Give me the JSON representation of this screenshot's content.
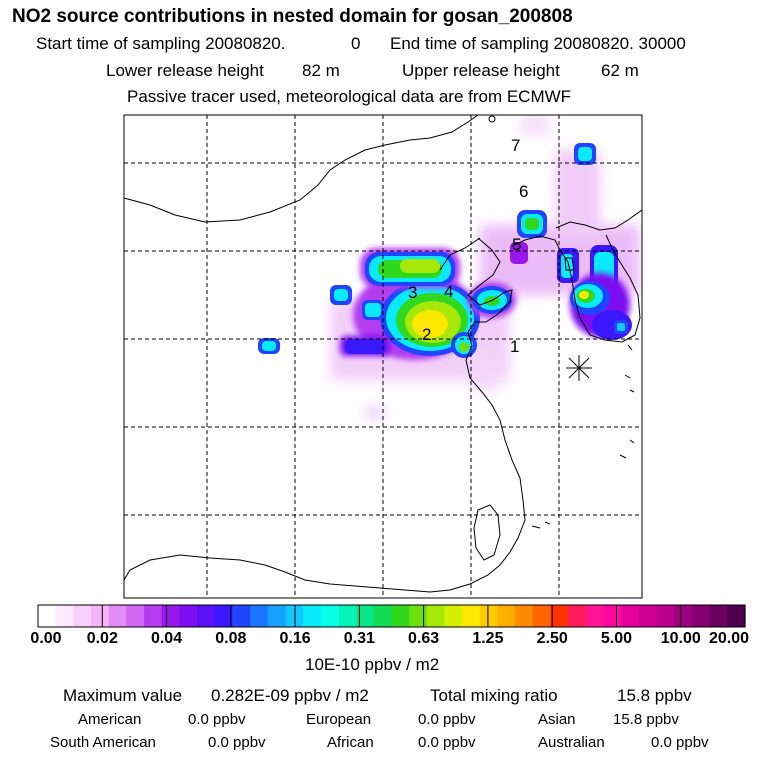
{
  "header": {
    "title": "NO2 source contributions in nested domain for gosan_200808",
    "start_label": "Start time of sampling 20080820.",
    "start_value": "0",
    "end_label": "End time of sampling 20080820. 30000",
    "lower_label": "Lower release height",
    "lower_value": "82 m",
    "upper_label": "Upper release height",
    "upper_value": "62 m",
    "note": "Passive tracer used, meteorological data are from ECMWF"
  },
  "map": {
    "region_labels": [
      "1",
      "2",
      "3",
      "4",
      "5",
      "6",
      "7"
    ],
    "receptor": "gosan-receptor-marker"
  },
  "colorbar": {
    "colors": [
      "#ffffff",
      "#fde8fd",
      "#f9d0fb",
      "#f3b5f8",
      "#e28cf5",
      "#d066f2",
      "#b33cf0",
      "#9a17ec",
      "#7c10f0",
      "#5a12f5",
      "#3a18fb",
      "#2244ff",
      "#1a75ff",
      "#16a0ff",
      "#12c8ff",
      "#0aeaff",
      "#06ffe6",
      "#08f3b8",
      "#0ae68a",
      "#12dd55",
      "#30d820",
      "#6ce010",
      "#a6e80a",
      "#d6ef06",
      "#ffe800",
      "#ffcc00",
      "#ffae00",
      "#ff8c00",
      "#ff6200",
      "#ff3300",
      "#ff1a5c",
      "#ff1493",
      "#ff0aa0",
      "#e8009a",
      "#d00092",
      "#b8008a",
      "#9c0080",
      "#820070",
      "#6a0060",
      "#4e004e"
    ],
    "tick_labels": [
      "0.00",
      "0.02",
      "0.04",
      "0.08",
      "0.16",
      "0.31",
      "0.63",
      "1.25",
      "2.50",
      "5.00",
      "10.00",
      "20.00"
    ],
    "units": "10E-10 ppbv / m2"
  },
  "footer": {
    "max_label": "Maximum value",
    "max_value": "0.282E-09 ppbv / m2",
    "total_label": "Total mixing ratio",
    "total_value": "15.8 ppbv",
    "american_label": "American",
    "american_value": "0.0 ppbv",
    "european_label": "European",
    "european_value": "0.0 ppbv",
    "asian_label": "Asian",
    "asian_value": "15.8 ppbv",
    "south_american_label": "South American",
    "south_american_value": "0.0 ppbv",
    "african_label": "African",
    "african_value": "0.0 ppbv",
    "australian_label": "Australian",
    "australian_value": "0.0 ppbv"
  }
}
